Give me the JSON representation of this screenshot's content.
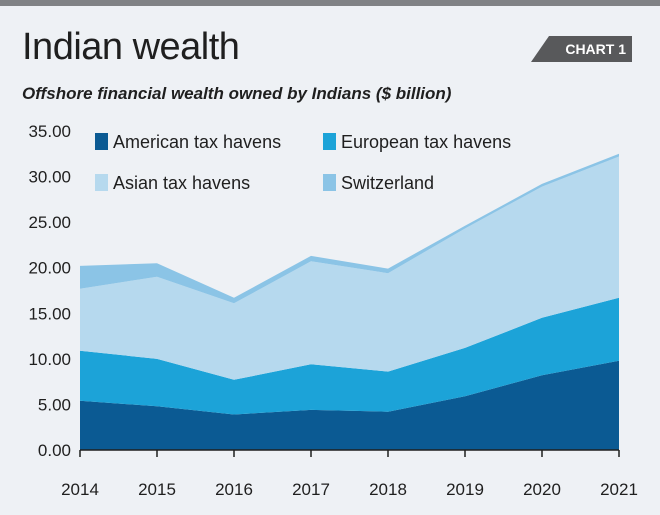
{
  "header": {
    "title": "Indian wealth",
    "badge": "CHART 1",
    "subtitle": "Offshore financial wealth owned by Indians ($ billion)"
  },
  "chart_data": {
    "type": "area",
    "stacked": true,
    "x": [
      "2014",
      "2015",
      "2016",
      "2017",
      "2018",
      "2019",
      "2020",
      "2021"
    ],
    "ylim": [
      0,
      35
    ],
    "yticks": [
      "0.00",
      "5.00",
      "10.00",
      "15.00",
      "20.00",
      "25.00",
      "30.00",
      "35.00"
    ],
    "grid": false,
    "legend_position": "top-left",
    "series": [
      {
        "name": "American tax havens",
        "color": "#0b5a93",
        "values": [
          5.4,
          4.8,
          3.9,
          4.4,
          4.2,
          5.9,
          8.2,
          9.8
        ]
      },
      {
        "name": "European tax havens",
        "color": "#1ca3d8",
        "values": [
          5.5,
          5.2,
          3.8,
          5.0,
          4.4,
          5.3,
          6.3,
          6.9
        ]
      },
      {
        "name": "Asian tax havens",
        "color": "#b6d9ee",
        "values": [
          6.8,
          9.0,
          8.4,
          11.3,
          10.8,
          13.1,
          14.4,
          15.5
        ]
      },
      {
        "name": "Switzerland",
        "color": "#8bc4e6",
        "values": [
          2.5,
          1.5,
          0.6,
          0.6,
          0.5,
          0.3,
          0.3,
          0.3
        ]
      }
    ]
  }
}
